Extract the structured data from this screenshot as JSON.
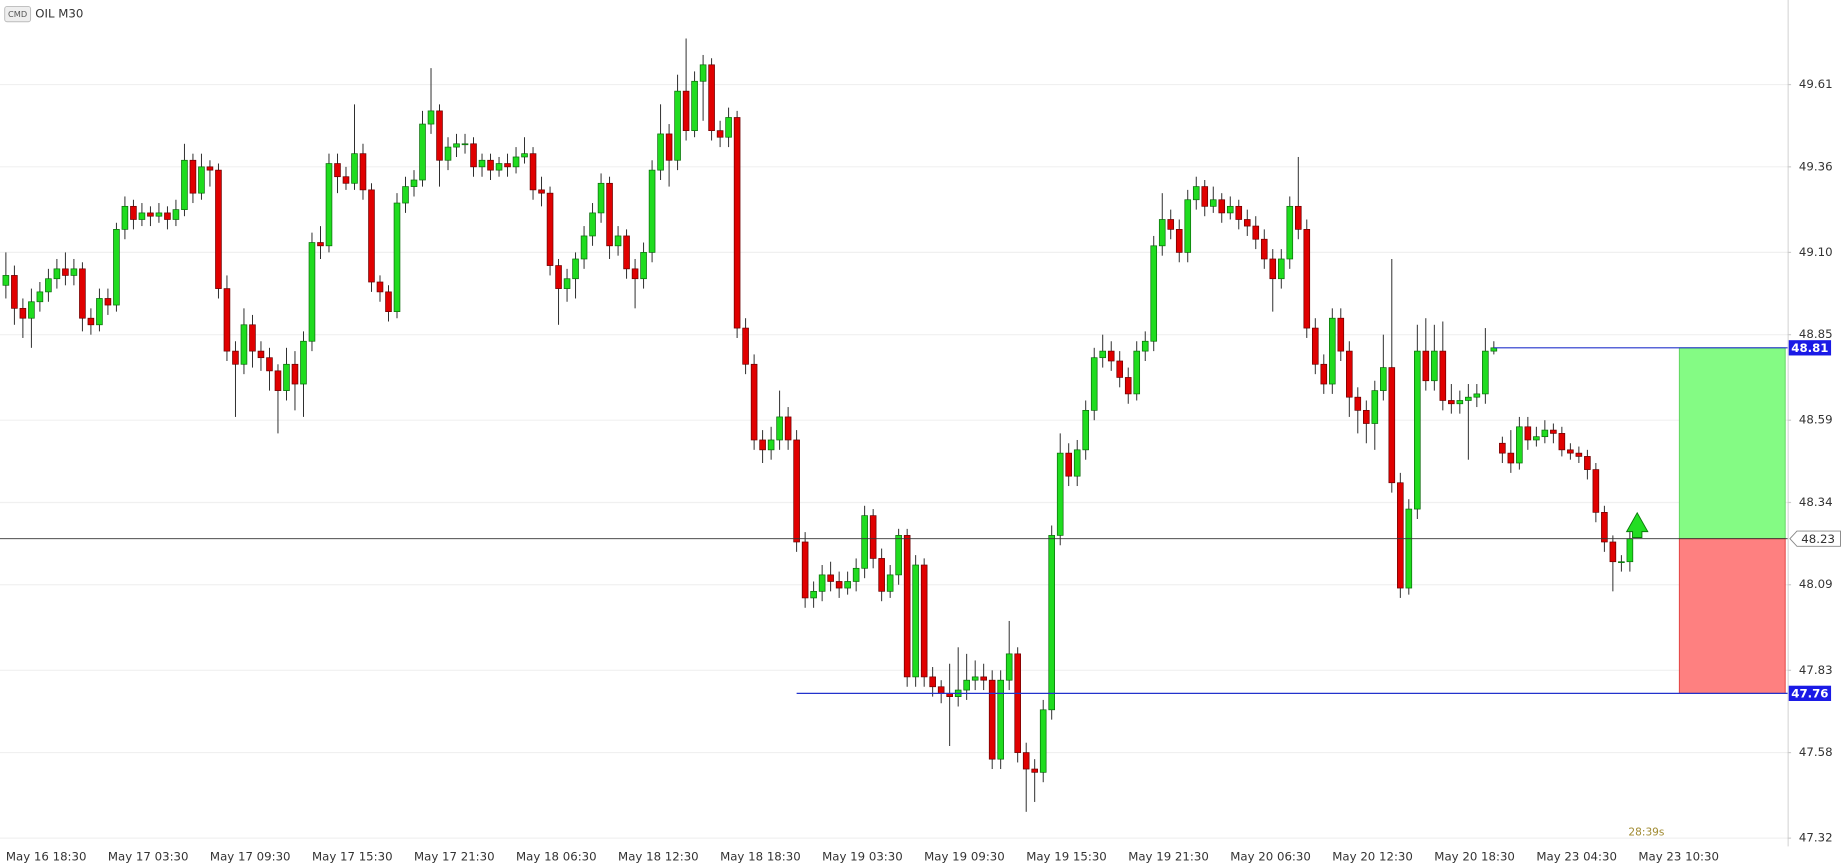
{
  "chart_data": {
    "type": "candlestick",
    "badge": "CMD",
    "title": "OIL M30",
    "timer": "28:39s",
    "ylim": [
      47.295,
      49.867
    ],
    "yticks": [
      49.61,
      49.36,
      {
        "value": 49.1,
        "label": "49.10"
      },
      48.85,
      48.59,
      48.34,
      48.09,
      47.83,
      47.58,
      47.32
    ],
    "grid": true,
    "up_color": "#1fdc1f",
    "down_color": "#e00000",
    "current_price": 48.23,
    "take_profit": 48.81,
    "stop_loss": 47.76,
    "categories": [
      "May 16 18:30",
      null,
      null,
      null,
      null,
      null,
      null,
      null,
      null,
      null,
      null,
      null,
      "May 17 03:30",
      null,
      null,
      null,
      null,
      null,
      null,
      null,
      null,
      null,
      null,
      null,
      "May 17 09:30",
      null,
      null,
      null,
      null,
      null,
      null,
      null,
      null,
      null,
      null,
      null,
      "May 17 15:30",
      null,
      null,
      null,
      null,
      null,
      null,
      null,
      null,
      null,
      null,
      null,
      "May 17 21:30",
      null,
      null,
      null,
      null,
      null,
      null,
      null,
      null,
      null,
      null,
      null,
      "May 18 06:30",
      null,
      null,
      null,
      null,
      null,
      null,
      null,
      null,
      null,
      null,
      null,
      "May 18 12:30",
      null,
      null,
      null,
      null,
      null,
      null,
      null,
      null,
      null,
      null,
      null,
      "May 18 18:30",
      null,
      null,
      null,
      null,
      null,
      null,
      null,
      null,
      null,
      null,
      null,
      "May 19 03:30",
      null,
      null,
      null,
      null,
      null,
      null,
      null,
      null,
      null,
      null,
      null,
      "May 19 09:30",
      null,
      null,
      null,
      null,
      null,
      null,
      null,
      null,
      null,
      null,
      null,
      "May 19 15:30",
      null,
      null,
      null,
      null,
      null,
      null,
      null,
      null,
      null,
      null,
      null,
      "May 19 21:30",
      null,
      null,
      null,
      null,
      null,
      null,
      null,
      null,
      null,
      null,
      null,
      "May 20 06:30",
      null,
      null,
      null,
      null,
      null,
      null,
      null,
      null,
      null,
      null,
      null,
      "May 20 12:30",
      null,
      null,
      null,
      null,
      null,
      null,
      null,
      null,
      null,
      null,
      null,
      "May 20 18:30",
      null,
      null,
      null,
      null,
      null,
      null,
      null,
      null,
      null,
      null,
      null,
      "May 23 04:30",
      null,
      null,
      null,
      null,
      null,
      null,
      null,
      null,
      null,
      null,
      null,
      "May 23 10:30"
    ],
    "open": [
      49.0,
      49.03,
      48.93,
      48.9,
      48.95,
      48.98,
      49.02,
      49.05,
      49.03,
      49.05,
      48.9,
      48.88,
      48.96,
      48.94,
      49.17,
      49.24,
      49.2,
      49.22,
      49.21,
      49.22,
      49.2,
      49.23,
      49.38,
      49.28,
      49.36,
      49.35,
      48.99,
      48.8,
      48.76,
      48.88,
      48.8,
      48.78,
      48.74,
      48.68,
      48.76,
      48.7,
      48.83,
      49.13,
      49.12,
      49.37,
      49.33,
      49.31,
      49.4,
      49.29,
      49.01,
      48.98,
      48.92,
      49.25,
      49.3,
      49.32,
      49.49,
      49.53,
      49.38,
      49.42,
      49.43,
      49.43,
      49.36,
      49.38,
      49.35,
      49.37,
      49.36,
      49.39,
      49.4,
      49.29,
      49.28,
      49.06,
      48.99,
      49.02,
      49.08,
      49.15,
      49.22,
      49.31,
      49.12,
      49.15,
      49.05,
      49.02,
      49.1,
      49.35,
      49.46,
      49.38,
      49.59,
      49.47,
      49.62,
      49.67,
      49.47,
      49.45,
      49.51,
      48.87,
      48.76,
      48.53,
      48.5,
      48.53,
      48.6,
      48.53,
      48.22,
      48.05,
      48.07,
      48.12,
      48.1,
      48.08,
      48.1,
      48.14,
      48.3,
      48.17,
      48.07,
      48.12,
      48.24,
      47.81,
      48.15,
      47.81,
      47.78,
      47.76,
      47.75,
      47.77,
      47.8,
      47.81,
      47.8,
      47.56,
      47.8,
      47.88,
      47.58,
      47.53,
      47.52,
      47.71,
      48.24,
      48.49,
      48.42,
      48.5,
      48.62,
      48.78,
      48.8,
      48.77,
      48.72,
      48.67,
      48.8,
      48.83,
      49.12,
      49.2,
      49.17,
      49.1,
      49.26,
      49.3,
      49.24,
      49.26,
      49.22,
      49.24,
      49.2,
      49.18,
      49.14,
      49.08,
      49.02,
      49.08,
      49.24,
      49.17,
      48.87,
      48.76,
      48.7,
      48.9,
      48.8,
      48.66,
      48.62,
      48.58,
      48.68,
      48.75,
      48.4,
      48.08,
      48.32,
      48.8,
      48.71,
      48.8,
      48.65,
      48.64,
      48.65,
      48.66,
      48.67,
      48.8,
      48.52,
      48.49,
      48.46,
      48.57,
      48.53,
      48.54,
      48.56,
      48.55,
      48.5,
      48.49,
      48.48,
      48.44,
      48.31,
      48.22,
      48.16,
      48.16,
      null
    ],
    "high": [
      49.1,
      49.06,
      48.96,
      48.99,
      49.01,
      49.05,
      49.08,
      49.1,
      49.08,
      49.07,
      48.93,
      48.99,
      48.99,
      49.19,
      49.27,
      49.26,
      49.25,
      49.24,
      49.25,
      49.24,
      49.26,
      49.43,
      49.4,
      49.4,
      49.38,
      49.37,
      49.03,
      48.83,
      48.93,
      48.91,
      48.83,
      48.81,
      48.76,
      48.81,
      48.8,
      48.86,
      49.16,
      49.18,
      49.4,
      49.4,
      49.36,
      49.55,
      49.43,
      49.31,
      49.03,
      49.0,
      49.28,
      49.33,
      49.35,
      49.53,
      49.66,
      49.55,
      49.45,
      49.46,
      49.46,
      49.45,
      49.4,
      49.4,
      49.39,
      49.4,
      49.42,
      49.45,
      49.42,
      49.33,
      49.3,
      49.08,
      49.05,
      49.1,
      49.18,
      49.25,
      49.34,
      49.33,
      49.18,
      49.17,
      49.08,
      49.13,
      49.38,
      49.55,
      49.49,
      49.64,
      49.75,
      49.65,
      49.7,
      49.69,
      49.5,
      49.54,
      49.53,
      48.9,
      48.79,
      48.56,
      48.57,
      48.68,
      48.63,
      48.56,
      48.25,
      48.1,
      48.15,
      48.16,
      48.13,
      48.13,
      48.17,
      48.33,
      48.32,
      48.2,
      48.15,
      48.26,
      48.26,
      48.18,
      48.17,
      47.84,
      47.8,
      47.85,
      47.9,
      47.88,
      47.86,
      47.85,
      47.83,
      47.83,
      47.98,
      47.9,
      47.61,
      47.56,
      47.74,
      48.27,
      48.55,
      48.52,
      48.53,
      48.65,
      48.81,
      48.85,
      48.83,
      48.8,
      48.75,
      48.83,
      48.86,
      49.15,
      49.28,
      49.23,
      49.2,
      49.29,
      49.33,
      49.32,
      49.3,
      49.28,
      49.27,
      49.26,
      49.23,
      49.21,
      49.17,
      49.11,
      49.11,
      49.27,
      49.39,
      49.2,
      48.9,
      48.79,
      48.93,
      48.93,
      48.83,
      48.69,
      48.65,
      48.71,
      48.85,
      49.08,
      48.43,
      48.35,
      48.88,
      48.9,
      48.88,
      48.89,
      48.7,
      48.68,
      48.7,
      48.7,
      48.87,
      48.83,
      48.54,
      48.56,
      48.6,
      48.6,
      48.57,
      48.59,
      48.58,
      48.57,
      48.52,
      48.51,
      48.5,
      48.46,
      48.33,
      48.24,
      48.18,
      48.25,
      null
    ],
    "low": [
      48.96,
      48.88,
      48.84,
      48.81,
      48.92,
      48.95,
      48.99,
      49.0,
      49.0,
      48.86,
      48.85,
      48.86,
      48.91,
      48.92,
      49.14,
      49.17,
      49.18,
      49.18,
      49.19,
      49.17,
      49.18,
      49.21,
      49.25,
      49.26,
      49.3,
      48.96,
      48.77,
      48.6,
      48.73,
      48.75,
      48.74,
      48.68,
      48.55,
      48.65,
      48.62,
      48.6,
      48.8,
      49.08,
      49.1,
      49.28,
      49.29,
      49.29,
      49.26,
      48.98,
      48.95,
      48.89,
      48.9,
      49.22,
      49.27,
      49.3,
      49.46,
      49.3,
      49.35,
      49.39,
      49.4,
      49.33,
      49.33,
      49.32,
      49.33,
      49.33,
      49.34,
      49.37,
      49.26,
      49.24,
      49.03,
      48.88,
      48.95,
      48.96,
      49.05,
      49.12,
      49.19,
      49.08,
      49.09,
      49.02,
      48.93,
      48.99,
      49.07,
      49.32,
      49.3,
      49.35,
      49.44,
      49.45,
      49.5,
      49.44,
      49.42,
      49.42,
      48.84,
      48.73,
      48.5,
      48.46,
      48.47,
      48.5,
      48.5,
      48.19,
      48.02,
      48.02,
      48.04,
      48.07,
      48.05,
      48.06,
      48.07,
      48.11,
      48.14,
      48.04,
      48.05,
      48.09,
      47.78,
      47.78,
      47.78,
      47.75,
      47.73,
      47.6,
      47.72,
      47.74,
      47.77,
      47.77,
      47.53,
      47.53,
      47.77,
      47.55,
      47.4,
      47.43,
      47.49,
      47.68,
      48.21,
      48.39,
      48.39,
      48.47,
      48.59,
      48.75,
      48.74,
      48.69,
      48.64,
      48.65,
      48.77,
      48.8,
      49.09,
      49.14,
      49.07,
      49.07,
      49.23,
      49.21,
      49.22,
      49.19,
      49.2,
      49.17,
      49.15,
      49.11,
      49.05,
      48.92,
      48.99,
      49.05,
      49.14,
      48.84,
      48.73,
      48.67,
      48.67,
      48.77,
      48.6,
      48.55,
      48.52,
      48.5,
      48.65,
      48.37,
      48.05,
      48.06,
      48.29,
      48.68,
      48.68,
      48.62,
      48.61,
      48.61,
      48.47,
      48.63,
      48.64,
      48.79,
      48.46,
      48.43,
      48.44,
      48.5,
      48.51,
      48.52,
      48.52,
      48.48,
      48.47,
      48.46,
      48.41,
      48.28,
      48.19,
      48.07,
      48.13,
      48.13,
      null
    ],
    "close": [
      49.03,
      48.93,
      48.9,
      48.95,
      48.98,
      49.02,
      49.05,
      49.03,
      49.05,
      48.9,
      48.88,
      48.96,
      48.94,
      49.17,
      49.24,
      49.2,
      49.22,
      49.21,
      49.22,
      49.2,
      49.23,
      49.38,
      49.28,
      49.36,
      49.35,
      48.99,
      48.8,
      48.76,
      48.88,
      48.8,
      48.78,
      48.74,
      48.68,
      48.76,
      48.7,
      48.83,
      49.13,
      49.12,
      49.37,
      49.33,
      49.31,
      49.4,
      49.29,
      49.01,
      48.98,
      48.92,
      49.25,
      49.3,
      49.32,
      49.49,
      49.53,
      49.38,
      49.42,
      49.43,
      49.43,
      49.36,
      49.38,
      49.35,
      49.37,
      49.36,
      49.39,
      49.4,
      49.29,
      49.28,
      49.06,
      48.99,
      49.02,
      49.08,
      49.15,
      49.22,
      49.31,
      49.12,
      49.15,
      49.05,
      49.02,
      49.1,
      49.35,
      49.46,
      49.38,
      49.59,
      49.47,
      49.62,
      49.67,
      49.47,
      49.45,
      49.51,
      48.87,
      48.76,
      48.53,
      48.5,
      48.53,
      48.6,
      48.53,
      48.22,
      48.05,
      48.07,
      48.12,
      48.1,
      48.08,
      48.1,
      48.14,
      48.3,
      48.17,
      48.07,
      48.12,
      48.24,
      47.81,
      48.15,
      47.81,
      47.78,
      47.76,
      47.75,
      47.77,
      47.8,
      47.81,
      47.8,
      47.56,
      47.8,
      47.88,
      47.58,
      47.53,
      47.52,
      47.71,
      48.24,
      48.49,
      48.42,
      48.5,
      48.62,
      48.78,
      48.8,
      48.77,
      48.72,
      48.67,
      48.8,
      48.83,
      49.12,
      49.2,
      49.17,
      49.1,
      49.26,
      49.3,
      49.24,
      49.26,
      49.22,
      49.24,
      49.2,
      49.18,
      49.14,
      49.08,
      49.02,
      49.08,
      49.24,
      49.17,
      48.87,
      48.76,
      48.7,
      48.9,
      48.8,
      48.66,
      48.62,
      48.58,
      48.68,
      48.75,
      48.4,
      48.08,
      48.32,
      48.8,
      48.71,
      48.8,
      48.65,
      48.64,
      48.65,
      48.66,
      48.67,
      48.8,
      48.81,
      48.49,
      48.46,
      48.57,
      48.53,
      48.54,
      48.56,
      48.55,
      48.5,
      48.49,
      48.48,
      48.44,
      48.31,
      48.22,
      48.16,
      48.16,
      48.23,
      null
    ]
  }
}
